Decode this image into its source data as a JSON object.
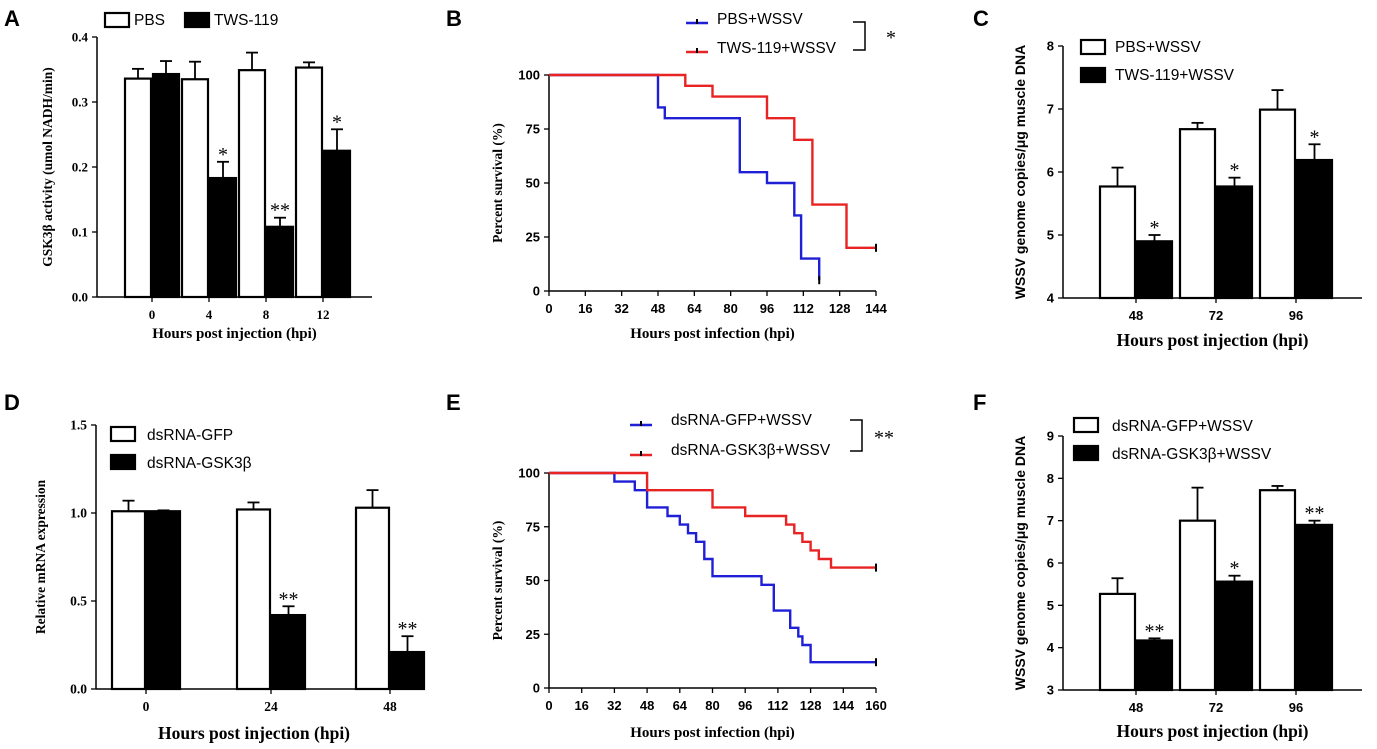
{
  "panels": [
    {
      "id": "A",
      "label": "A",
      "type": "bar",
      "ylabel": "GSK3β activity (umol NADH/min)",
      "xlabel": "Hours post injection (hpi)",
      "categories": [
        "0",
        "4",
        "8",
        "12"
      ],
      "yticks": [
        "0.0",
        "0.1",
        "0.2",
        "0.3",
        "0.4"
      ],
      "ylim": [
        0,
        0.4
      ],
      "series": [
        {
          "name": "PBS",
          "fill": "#ffffff",
          "values": [
            0.336,
            0.335,
            0.349,
            0.353
          ],
          "errors": [
            0.015,
            0.027,
            0.027,
            0.008
          ],
          "sig": [
            "",
            "",
            "",
            ""
          ]
        },
        {
          "name": "TWS-119",
          "fill": "#000000",
          "values": [
            0.343,
            0.183,
            0.108,
            0.225
          ],
          "errors": [
            0.02,
            0.025,
            0.014,
            0.033
          ],
          "sig": [
            "",
            "*",
            "**",
            "*"
          ]
        }
      ]
    },
    {
      "id": "B",
      "label": "B",
      "type": "line",
      "ylabel": "Percent survival (%)",
      "xlabel": "Hours post infection (hpi)",
      "xticks": [
        "0",
        "16",
        "32",
        "48",
        "64",
        "80",
        "96",
        "112",
        "128",
        "144"
      ],
      "xlim": [
        0,
        144
      ],
      "yticks": [
        "0",
        "25",
        "50",
        "75",
        "100"
      ],
      "ylim": [
        0,
        100
      ],
      "bracket": "*",
      "series": [
        {
          "name": "PBS+WSSV",
          "color": "#1f1fd6",
          "x": [
            0,
            48,
            48,
            51,
            51,
            84,
            84,
            96,
            96,
            108,
            108,
            111,
            111,
            119,
            119
          ],
          "y": [
            100,
            100,
            85,
            85,
            80,
            80,
            55,
            55,
            50,
            50,
            35,
            35,
            15,
            15,
            5
          ]
        },
        {
          "name": "TWS-119+WSSV",
          "color": "#e82323",
          "x": [
            0,
            60,
            60,
            72,
            72,
            96,
            96,
            108,
            108,
            116,
            116,
            131,
            131,
            144
          ],
          "y": [
            100,
            100,
            95,
            95,
            90,
            90,
            80,
            80,
            70,
            70,
            40,
            40,
            20,
            20
          ]
        }
      ]
    },
    {
      "id": "C",
      "label": "C",
      "type": "bar",
      "ylabel": "WSSV genome copies/μg muscle DNA",
      "xlabel": "Hours post injection (hpi)",
      "categories": [
        "48",
        "72",
        "96"
      ],
      "yticks": [
        "4",
        "5",
        "6",
        "7",
        "8"
      ],
      "ylim": [
        4,
        8
      ],
      "series": [
        {
          "name": "PBS+WSSV",
          "fill": "#ffffff",
          "values": [
            5.77,
            6.68,
            6.99
          ],
          "errors": [
            0.3,
            0.1,
            0.31
          ],
          "sig": [
            "",
            "",
            ""
          ]
        },
        {
          "name": "TWS-119+WSSV",
          "fill": "#000000",
          "values": [
            4.9,
            5.77,
            6.19
          ],
          "errors": [
            0.1,
            0.14,
            0.25
          ],
          "sig": [
            "*",
            "*",
            "*"
          ]
        }
      ]
    },
    {
      "id": "D",
      "label": "D",
      "type": "bar",
      "ylabel": "Relative mRNA expression",
      "xlabel": "Hours post injection (hpi)",
      "categories": [
        "0",
        "24",
        "48"
      ],
      "yticks": [
        "0.0",
        "0.5",
        "1.0",
        "1.5"
      ],
      "ylim": [
        0,
        1.5
      ],
      "series": [
        {
          "name": "dsRNA-GFP",
          "fill": "#ffffff",
          "values": [
            1.01,
            1.02,
            1.03
          ],
          "errors": [
            0.06,
            0.04,
            0.1
          ],
          "sig": [
            "",
            "",
            ""
          ]
        },
        {
          "name": "dsRNA-GSK3β",
          "fill": "#000000",
          "values": [
            1.01,
            0.42,
            0.21
          ],
          "errors": [
            0.005,
            0.05,
            0.09
          ],
          "sig": [
            "",
            "**",
            "**"
          ]
        }
      ]
    },
    {
      "id": "E",
      "label": "E",
      "type": "line",
      "ylabel": "Percent survival (%)",
      "xlabel": "Hours post infection (hpi)",
      "xticks": [
        "0",
        "16",
        "32",
        "48",
        "64",
        "80",
        "96",
        "112",
        "128",
        "144",
        "160"
      ],
      "xlim": [
        0,
        160
      ],
      "yticks": [
        "0",
        "25",
        "50",
        "75",
        "100"
      ],
      "ylim": [
        0,
        100
      ],
      "bracket": "**",
      "series": [
        {
          "name": "dsRNA-GFP+WSSV",
          "color": "#1f1fd6",
          "x": [
            0,
            32,
            32,
            42,
            42,
            48,
            48,
            58,
            58,
            64,
            64,
            68,
            68,
            72,
            72,
            76,
            76,
            80,
            80,
            104,
            104,
            110,
            110,
            118,
            118,
            122,
            122,
            124,
            124,
            128,
            128,
            144,
            144,
            160
          ],
          "y": [
            100,
            100,
            96,
            96,
            92,
            92,
            84,
            84,
            80,
            80,
            76,
            76,
            72,
            72,
            68,
            68,
            60,
            60,
            52,
            52,
            48,
            48,
            36,
            36,
            28,
            28,
            24,
            24,
            20,
            20,
            12,
            12,
            12,
            12
          ]
        },
        {
          "name": "dsRNA-GSK3β+WSSV",
          "color": "#e82323",
          "x": [
            0,
            48,
            48,
            80,
            80,
            96,
            96,
            116,
            116,
            120,
            120,
            124,
            124,
            128,
            128,
            132,
            132,
            138,
            138,
            144,
            144,
            152,
            152,
            158,
            158,
            160
          ],
          "y": [
            100,
            100,
            92,
            92,
            84,
            84,
            80,
            80,
            76,
            76,
            72,
            72,
            68,
            68,
            64,
            64,
            60,
            60,
            56,
            56,
            56,
            56,
            56,
            56,
            56,
            56
          ]
        }
      ]
    },
    {
      "id": "F",
      "label": "F",
      "type": "bar",
      "ylabel": "WSSV genome copies/μg muscle DNA",
      "xlabel": "Hours post injection (hpi)",
      "categories": [
        "48",
        "72",
        "96"
      ],
      "yticks": [
        "3",
        "4",
        "5",
        "6",
        "7",
        "8",
        "9"
      ],
      "ylim": [
        3,
        9
      ],
      "series": [
        {
          "name": "dsRNA-GFP+WSSV",
          "fill": "#ffffff",
          "values": [
            5.27,
            7.0,
            7.72
          ],
          "errors": [
            0.37,
            0.78,
            0.1
          ],
          "sig": [
            "",
            "",
            ""
          ]
        },
        {
          "name": "dsRNA-GSK3β+WSSV",
          "fill": "#000000",
          "values": [
            4.17,
            5.56,
            6.9
          ],
          "errors": [
            0.05,
            0.14,
            0.1
          ],
          "sig": [
            "**",
            "*",
            "**"
          ]
        }
      ]
    }
  ],
  "chart_data": [
    {
      "type": "bar",
      "panel": "A",
      "title": "",
      "categories": [
        "0",
        "4",
        "8",
        "12"
      ],
      "series": [
        {
          "name": "PBS",
          "values": [
            0.336,
            0.335,
            0.349,
            0.353
          ]
        },
        {
          "name": "TWS-119",
          "values": [
            0.343,
            0.183,
            0.108,
            0.225
          ]
        }
      ],
      "xlabel": "Hours post injection (hpi)",
      "ylabel": "GSK3β activity (umol NADH/min)",
      "ylim": [
        0,
        0.4
      ]
    },
    {
      "type": "line",
      "panel": "B",
      "title": "",
      "series": [
        {
          "name": "PBS+WSSV",
          "x": [
            0,
            48,
            51,
            84,
            96,
            108,
            111,
            119
          ],
          "y": [
            100,
            85,
            80,
            55,
            50,
            35,
            15,
            5
          ]
        },
        {
          "name": "TWS-119+WSSV",
          "x": [
            0,
            60,
            72,
            96,
            108,
            116,
            131,
            144
          ],
          "y": [
            100,
            95,
            90,
            80,
            70,
            40,
            20,
            20
          ]
        }
      ],
      "xlabel": "Hours post infection (hpi)",
      "ylabel": "Percent survival (%)",
      "xlim": [
        0,
        144
      ],
      "ylim": [
        0,
        100
      ]
    },
    {
      "type": "bar",
      "panel": "C",
      "title": "",
      "categories": [
        "48",
        "72",
        "96"
      ],
      "series": [
        {
          "name": "PBS+WSSV",
          "values": [
            5.77,
            6.68,
            6.99
          ]
        },
        {
          "name": "TWS-119+WSSV",
          "values": [
            4.9,
            5.77,
            6.19
          ]
        }
      ],
      "xlabel": "Hours post injection (hpi)",
      "ylabel": "WSSV genome copies/μg muscle DNA",
      "ylim": [
        4,
        8
      ]
    },
    {
      "type": "bar",
      "panel": "D",
      "title": "",
      "categories": [
        "0",
        "24",
        "48"
      ],
      "series": [
        {
          "name": "dsRNA-GFP",
          "values": [
            1.01,
            1.02,
            1.03
          ]
        },
        {
          "name": "dsRNA-GSK3β",
          "values": [
            1.01,
            0.42,
            0.21
          ]
        }
      ],
      "xlabel": "Hours post injection (hpi)",
      "ylabel": "Relative mRNA expression",
      "ylim": [
        0,
        1.5
      ]
    },
    {
      "type": "line",
      "panel": "E",
      "title": "",
      "series": [
        {
          "name": "dsRNA-GFP+WSSV",
          "x": [
            0,
            32,
            48,
            64,
            80,
            104,
            112,
            128,
            144,
            160
          ],
          "y": [
            100,
            96,
            84,
            76,
            52,
            48,
            36,
            20,
            12,
            12
          ]
        },
        {
          "name": "dsRNA-GSK3β+WSSV",
          "x": [
            0,
            48,
            80,
            96,
            116,
            128,
            144,
            160
          ],
          "y": [
            100,
            92,
            84,
            80,
            76,
            64,
            56,
            56
          ]
        }
      ],
      "xlabel": "Hours post infection (hpi)",
      "ylabel": "Percent survival (%)",
      "xlim": [
        0,
        160
      ],
      "ylim": [
        0,
        100
      ]
    },
    {
      "type": "bar",
      "panel": "F",
      "title": "",
      "categories": [
        "48",
        "72",
        "96"
      ],
      "series": [
        {
          "name": "dsRNA-GFP+WSSV",
          "values": [
            5.27,
            7.0,
            7.72
          ]
        },
        {
          "name": "dsRNA-GSK3β+WSSV",
          "values": [
            4.17,
            5.56,
            6.9
          ]
        }
      ],
      "xlabel": "Hours post injection (hpi)",
      "ylabel": "WSSV genome copies/μg muscle DNA",
      "ylim": [
        3,
        9
      ]
    }
  ]
}
